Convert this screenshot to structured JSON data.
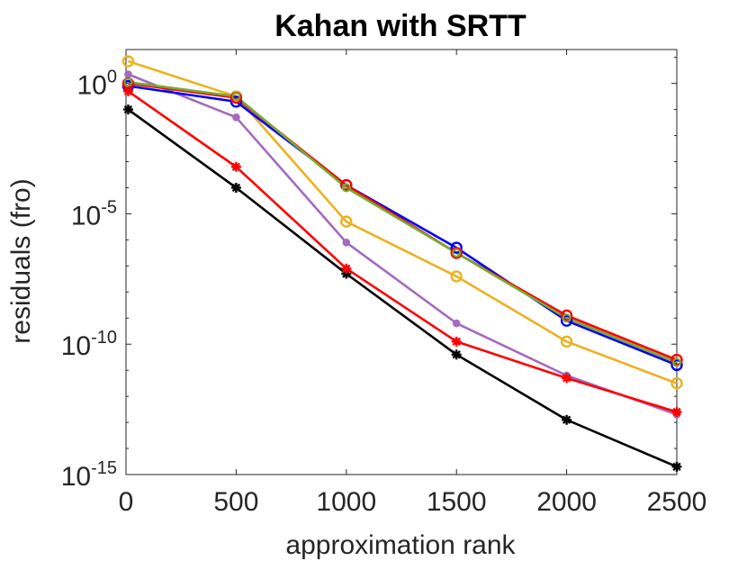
{
  "chart_data": {
    "type": "line",
    "title": "Kahan with SRTT",
    "xlabel": "approximation rank",
    "ylabel": "residuals (fro)",
    "xlim": [
      0,
      2500
    ],
    "ylim_log10": [
      -15,
      1.3
    ],
    "yscale": "log",
    "grid": false,
    "x": [
      10,
      500,
      1000,
      1500,
      2000,
      2500
    ],
    "xticks": [
      {
        "value": 0,
        "label": "0"
      },
      {
        "value": 500,
        "label": "500"
      },
      {
        "value": 1000,
        "label": "1000"
      },
      {
        "value": 1500,
        "label": "1500"
      },
      {
        "value": 2000,
        "label": "2000"
      },
      {
        "value": 2500,
        "label": "2500"
      }
    ],
    "yticks": [
      {
        "exp": 0,
        "base": "10",
        "sup": "0"
      },
      {
        "exp": -5,
        "base": "10",
        "sup": "-5"
      },
      {
        "exp": -10,
        "base": "10",
        "sup": "-10"
      },
      {
        "exp": -15,
        "base": "10",
        "sup": "-15"
      }
    ],
    "series": [
      {
        "name": "black",
        "color": "#000000",
        "marker": "asterisk",
        "log10_values": [
          -1.0,
          -4.0,
          -7.3,
          -10.4,
          -12.9,
          -14.7
        ]
      },
      {
        "name": "orange",
        "color": "#EDB120",
        "marker": "circle-open",
        "log10_values": [
          0.85,
          -0.5,
          -5.3,
          -7.4,
          -9.9,
          -11.5
        ]
      },
      {
        "name": "purple",
        "color": "#A569BD",
        "marker": "dot",
        "log10_values": [
          0.35,
          -1.3,
          -6.1,
          -9.2,
          -11.2,
          -12.7
        ]
      },
      {
        "name": "blue",
        "color": "#0000FF",
        "marker": "circle-open",
        "log10_values": [
          -0.1,
          -0.7,
          -3.9,
          -6.3,
          -9.1,
          -10.8
        ]
      },
      {
        "name": "red",
        "color": "#FF0000",
        "marker": "asterisk",
        "log10_values": [
          -0.3,
          -3.2,
          -7.1,
          -9.9,
          -11.3,
          -12.6
        ]
      },
      {
        "name": "red-circles",
        "color": "#FF0000",
        "marker": "circle-open",
        "log10_values": [
          0.0,
          -0.55,
          -3.9,
          -6.5,
          -8.9,
          -10.6
        ]
      },
      {
        "name": "green",
        "color": "#77AC30",
        "marker": "circle-open-small",
        "log10_values": [
          0.05,
          -0.5,
          -4.0,
          -6.5,
          -9.0,
          -10.7
        ]
      }
    ]
  }
}
